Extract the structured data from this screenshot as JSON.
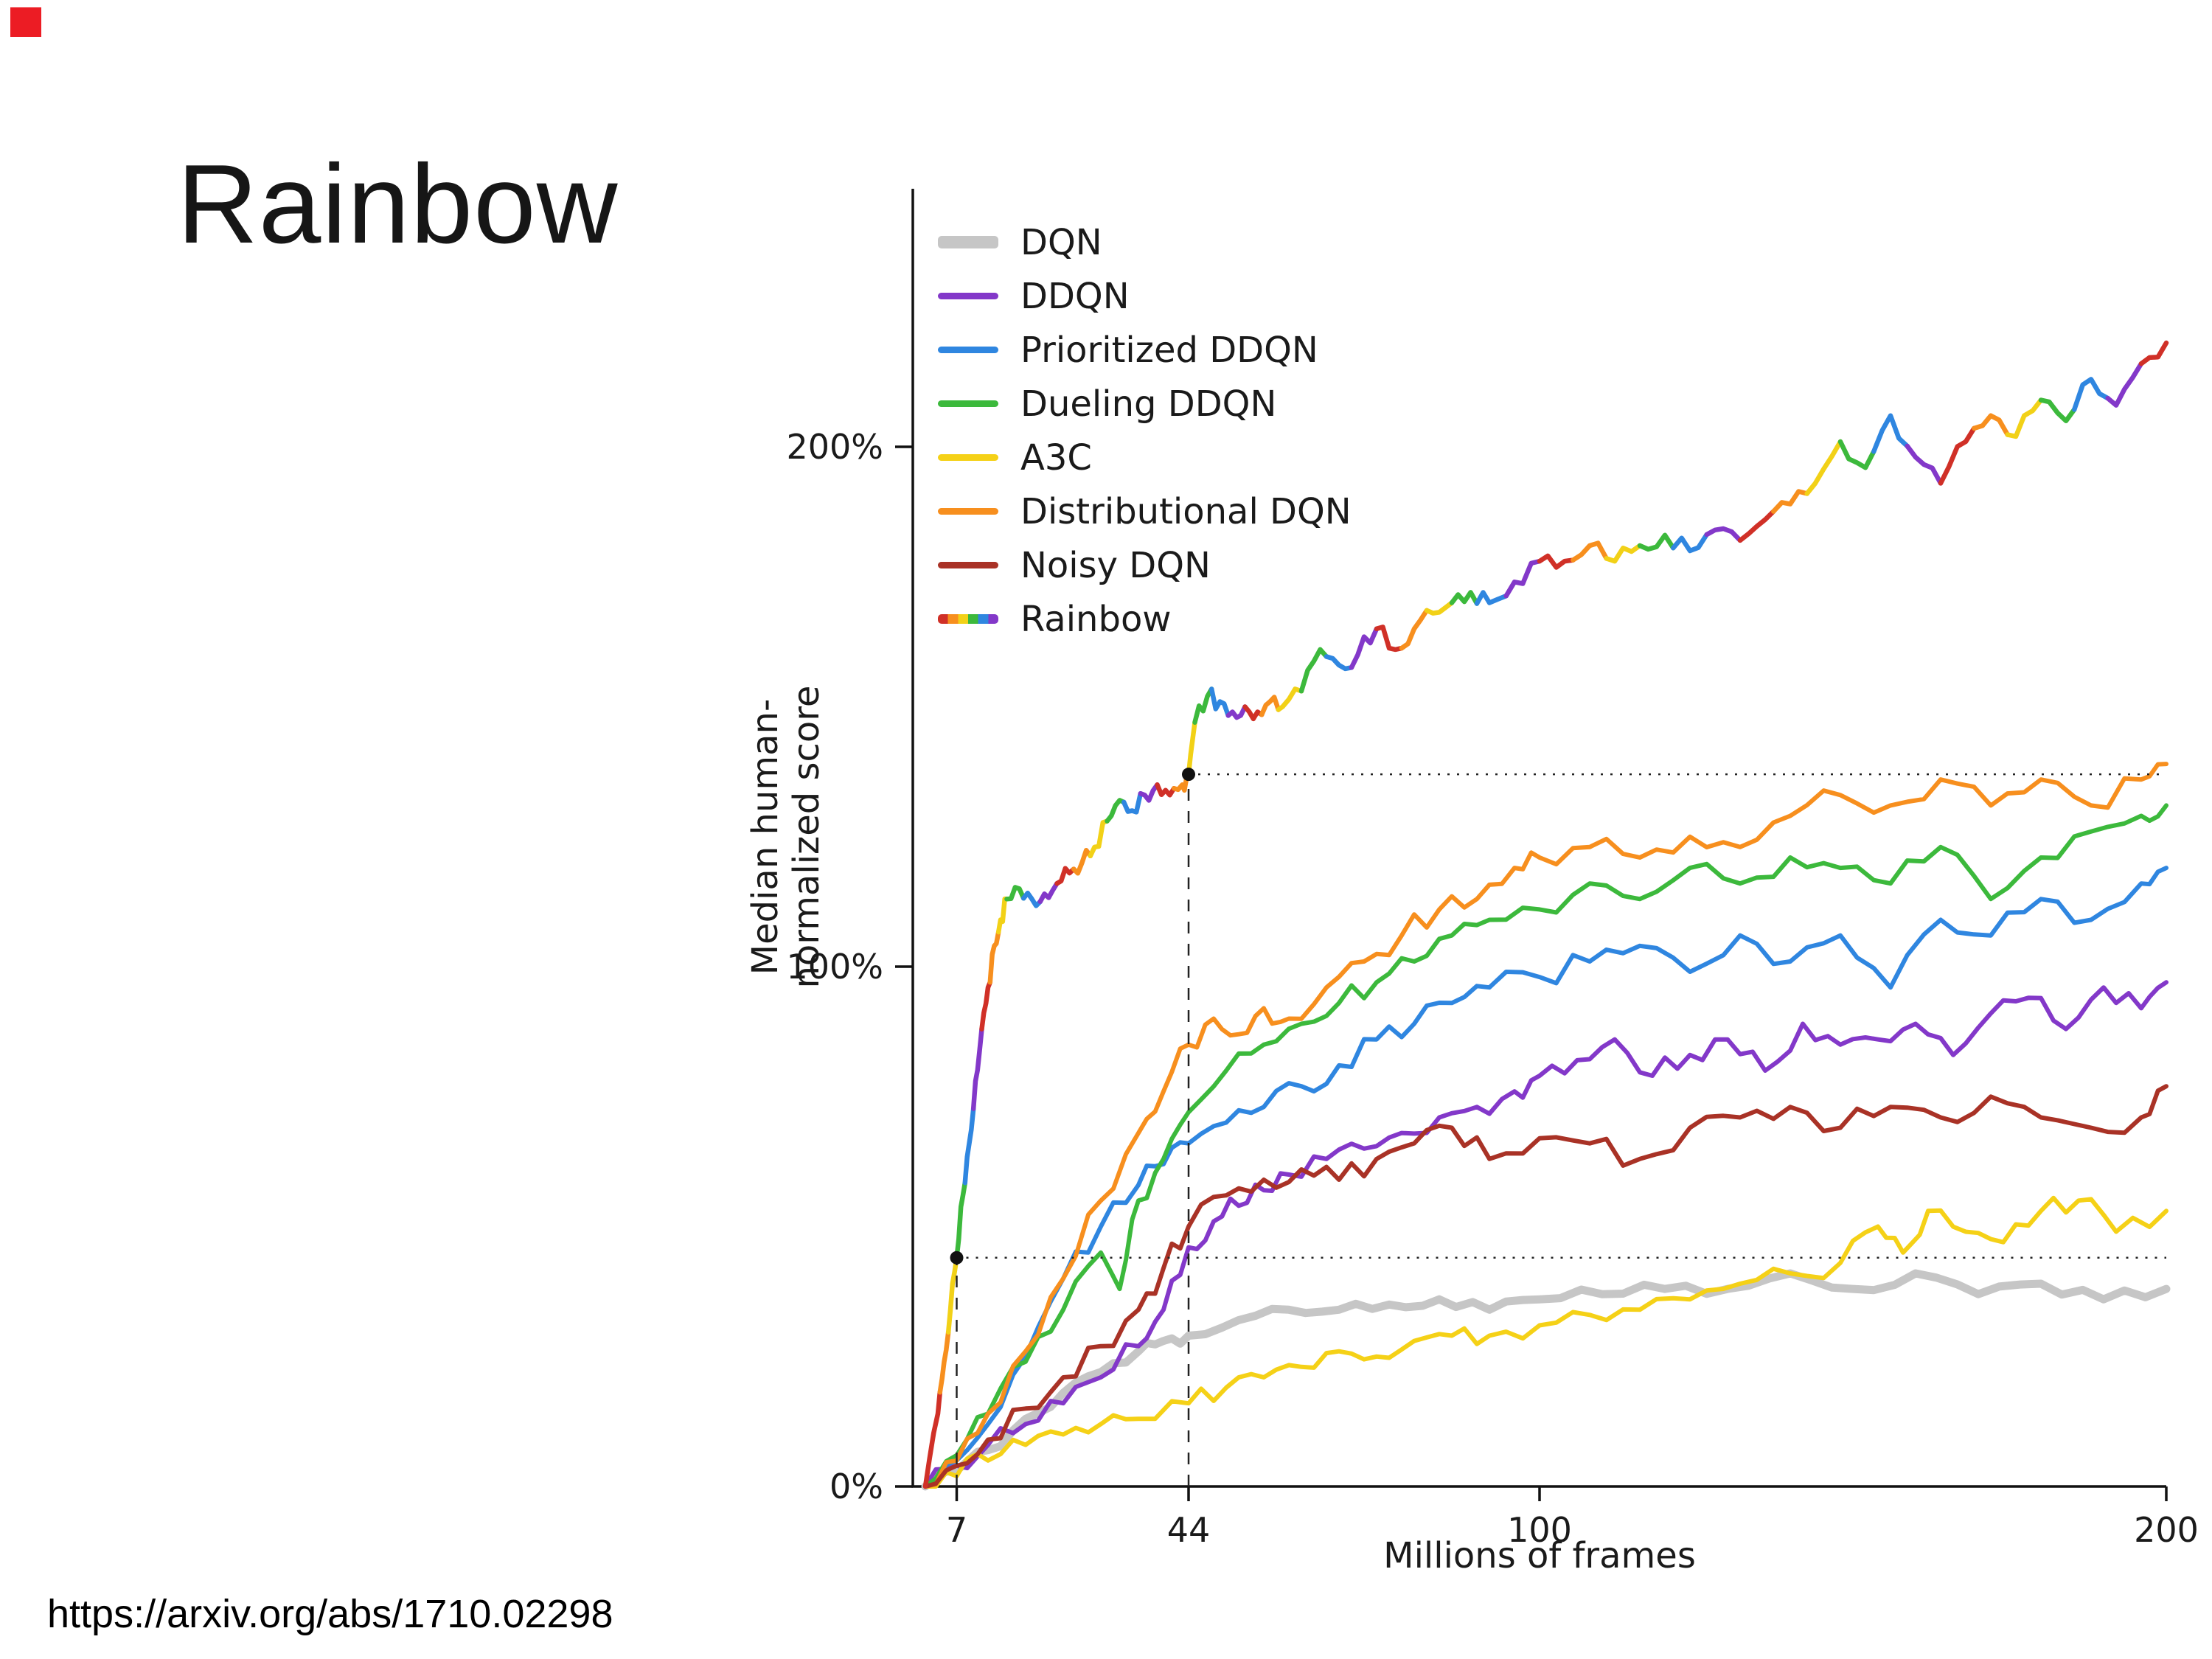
{
  "slide": {
    "title": "Rainbow",
    "source_url": "https://arxiv.org/abs/1710.02298"
  },
  "chart_data": {
    "type": "line",
    "title": "",
    "xlabel": "Millions of frames",
    "ylabel": "Median human-normalized score",
    "xlim": [
      0,
      200
    ],
    "ylim": [
      0,
      248
    ],
    "grid": false,
    "legend_position": "top-left",
    "x_ticks": [
      7,
      44,
      100,
      200
    ],
    "y_ticks": [
      {
        "value": 0,
        "label": "0%"
      },
      {
        "value": 100,
        "label": "100%"
      },
      {
        "value": 200,
        "label": "200%"
      }
    ],
    "series": [
      {
        "name": "DQN",
        "color": "#c6c6c6",
        "width": 11,
        "points": [
          [
            2,
            0
          ],
          [
            7,
            3
          ],
          [
            12,
            7
          ],
          [
            18,
            13
          ],
          [
            24,
            18
          ],
          [
            30,
            22
          ],
          [
            36,
            26
          ],
          [
            40,
            28
          ],
          [
            44,
            29
          ],
          [
            52,
            32
          ],
          [
            60,
            34
          ],
          [
            68,
            34
          ],
          [
            76,
            35
          ],
          [
            84,
            36
          ],
          [
            92,
            34
          ],
          [
            100,
            36
          ],
          [
            110,
            37
          ],
          [
            120,
            38
          ],
          [
            130,
            38
          ],
          [
            140,
            41
          ],
          [
            150,
            38
          ],
          [
            160,
            41
          ],
          [
            170,
            37
          ],
          [
            180,
            39
          ],
          [
            190,
            36
          ],
          [
            200,
            38
          ]
        ]
      },
      {
        "name": "DDQN",
        "color": "#8338c9",
        "width": 6,
        "points": [
          [
            2,
            0
          ],
          [
            7,
            4
          ],
          [
            12,
            8
          ],
          [
            18,
            12
          ],
          [
            24,
            16
          ],
          [
            30,
            21
          ],
          [
            36,
            27
          ],
          [
            40,
            34
          ],
          [
            44,
            46
          ],
          [
            48,
            51
          ],
          [
            52,
            54
          ],
          [
            56,
            57
          ],
          [
            60,
            60
          ],
          [
            66,
            63
          ],
          [
            72,
            65
          ],
          [
            78,
            68
          ],
          [
            84,
            71
          ],
          [
            90,
            73
          ],
          [
            96,
            76
          ],
          [
            100,
            79
          ],
          [
            106,
            82
          ],
          [
            112,
            86
          ],
          [
            118,
            79
          ],
          [
            124,
            83
          ],
          [
            130,
            86
          ],
          [
            136,
            80
          ],
          [
            142,
            89
          ],
          [
            148,
            85
          ],
          [
            154,
            86
          ],
          [
            160,
            89
          ],
          [
            166,
            83
          ],
          [
            172,
            91
          ],
          [
            178,
            94
          ],
          [
            184,
            88
          ],
          [
            190,
            96
          ],
          [
            196,
            92
          ],
          [
            200,
            97
          ]
        ]
      },
      {
        "name": "Prioritized DDQN",
        "color": "#2f86e0",
        "width": 6,
        "points": [
          [
            2,
            0
          ],
          [
            7,
            5
          ],
          [
            12,
            12
          ],
          [
            18,
            25
          ],
          [
            24,
            40
          ],
          [
            30,
            50
          ],
          [
            36,
            58
          ],
          [
            40,
            62
          ],
          [
            44,
            66
          ],
          [
            50,
            70
          ],
          [
            56,
            73
          ],
          [
            62,
            77
          ],
          [
            68,
            81
          ],
          [
            74,
            86
          ],
          [
            80,
            89
          ],
          [
            86,
            93
          ],
          [
            92,
            96
          ],
          [
            100,
            98
          ],
          [
            108,
            101
          ],
          [
            116,
            104
          ],
          [
            124,
            99
          ],
          [
            132,
            106
          ],
          [
            140,
            101
          ],
          [
            148,
            106
          ],
          [
            156,
            96
          ],
          [
            164,
            109
          ],
          [
            172,
            106
          ],
          [
            180,
            113
          ],
          [
            188,
            109
          ],
          [
            196,
            116
          ],
          [
            200,
            119
          ]
        ]
      },
      {
        "name": "Dueling DDQN",
        "color": "#3cb93c",
        "width": 6,
        "points": [
          [
            2,
            0
          ],
          [
            7,
            6
          ],
          [
            12,
            14
          ],
          [
            18,
            24
          ],
          [
            24,
            34
          ],
          [
            30,
            45
          ],
          [
            33,
            38
          ],
          [
            36,
            55
          ],
          [
            40,
            63
          ],
          [
            44,
            72
          ],
          [
            50,
            80
          ],
          [
            56,
            85
          ],
          [
            62,
            89
          ],
          [
            68,
            93
          ],
          [
            74,
            97
          ],
          [
            80,
            101
          ],
          [
            86,
            106
          ],
          [
            92,
            109
          ],
          [
            100,
            111
          ],
          [
            108,
            116
          ],
          [
            116,
            113
          ],
          [
            124,
            119
          ],
          [
            132,
            116
          ],
          [
            140,
            121
          ],
          [
            148,
            119
          ],
          [
            156,
            116
          ],
          [
            164,
            123
          ],
          [
            172,
            113
          ],
          [
            180,
            121
          ],
          [
            188,
            126
          ],
          [
            196,
            129
          ],
          [
            200,
            131
          ]
        ]
      },
      {
        "name": "A3C",
        "color": "#f5d117",
        "width": 6,
        "points": [
          [
            2,
            0
          ],
          [
            7,
            2
          ],
          [
            12,
            5
          ],
          [
            18,
            8
          ],
          [
            24,
            10
          ],
          [
            30,
            12
          ],
          [
            36,
            13
          ],
          [
            44,
            16
          ],
          [
            50,
            19
          ],
          [
            56,
            21
          ],
          [
            62,
            23
          ],
          [
            68,
            26
          ],
          [
            74,
            25
          ],
          [
            80,
            28
          ],
          [
            86,
            29
          ],
          [
            92,
            29
          ],
          [
            100,
            31
          ],
          [
            108,
            33
          ],
          [
            116,
            34
          ],
          [
            124,
            36
          ],
          [
            132,
            39
          ],
          [
            140,
            41
          ],
          [
            148,
            43
          ],
          [
            154,
            50
          ],
          [
            158,
            45
          ],
          [
            162,
            53
          ],
          [
            168,
            49
          ],
          [
            174,
            47
          ],
          [
            180,
            53
          ],
          [
            186,
            55
          ],
          [
            192,
            49
          ],
          [
            200,
            53
          ]
        ]
      },
      {
        "name": "Distributional DQN",
        "color": "#f78f1e",
        "width": 6,
        "points": [
          [
            2,
            0
          ],
          [
            7,
            5
          ],
          [
            12,
            14
          ],
          [
            18,
            26
          ],
          [
            24,
            40
          ],
          [
            30,
            55
          ],
          [
            36,
            68
          ],
          [
            40,
            76
          ],
          [
            44,
            85
          ],
          [
            48,
            90
          ],
          [
            52,
            87
          ],
          [
            56,
            92
          ],
          [
            60,
            90
          ],
          [
            66,
            96
          ],
          [
            72,
            101
          ],
          [
            78,
            106
          ],
          [
            84,
            111
          ],
          [
            90,
            113
          ],
          [
            96,
            119
          ],
          [
            100,
            121
          ],
          [
            108,
            123
          ],
          [
            116,
            121
          ],
          [
            124,
            125
          ],
          [
            132,
            123
          ],
          [
            140,
            129
          ],
          [
            148,
            133
          ],
          [
            156,
            131
          ],
          [
            164,
            136
          ],
          [
            172,
            131
          ],
          [
            180,
            136
          ],
          [
            188,
            131
          ],
          [
            196,
            136
          ],
          [
            200,
            139
          ]
        ]
      },
      {
        "name": "Noisy DQN",
        "color": "#a93226",
        "width": 6,
        "points": [
          [
            2,
            0
          ],
          [
            7,
            4
          ],
          [
            12,
            9
          ],
          [
            18,
            15
          ],
          [
            24,
            21
          ],
          [
            30,
            27
          ],
          [
            36,
            34
          ],
          [
            40,
            42
          ],
          [
            44,
            50
          ],
          [
            50,
            56
          ],
          [
            56,
            59
          ],
          [
            62,
            61
          ],
          [
            68,
            59
          ],
          [
            74,
            63
          ],
          [
            80,
            66
          ],
          [
            86,
            69
          ],
          [
            92,
            63
          ],
          [
            100,
            67
          ],
          [
            108,
            66
          ],
          [
            116,
            63
          ],
          [
            124,
            69
          ],
          [
            132,
            71
          ],
          [
            140,
            73
          ],
          [
            148,
            69
          ],
          [
            156,
            73
          ],
          [
            164,
            71
          ],
          [
            172,
            75
          ],
          [
            180,
            71
          ],
          [
            188,
            69
          ],
          [
            196,
            71
          ],
          [
            200,
            77
          ]
        ]
      },
      {
        "name": "Rainbow",
        "color": [
          "#d03027",
          "#f78f1e",
          "#f2d117",
          "#3cb93c",
          "#2f86e0",
          "#8338c9"
        ],
        "width": 6.5,
        "points": [
          [
            2,
            0
          ],
          [
            4,
            14
          ],
          [
            5,
            24
          ],
          [
            6,
            34
          ],
          [
            7,
            44
          ],
          [
            8,
            56
          ],
          [
            9,
            66
          ],
          [
            10,
            78
          ],
          [
            11,
            88
          ],
          [
            12,
            96
          ],
          [
            13,
            104
          ],
          [
            14,
            109
          ],
          [
            15,
            113
          ],
          [
            17,
            115
          ],
          [
            19,
            113
          ],
          [
            21,
            114
          ],
          [
            23,
            116
          ],
          [
            25,
            118
          ],
          [
            27,
            120
          ],
          [
            29,
            123
          ],
          [
            31,
            128
          ],
          [
            33,
            132
          ],
          [
            35,
            130
          ],
          [
            37,
            133
          ],
          [
            39,
            135
          ],
          [
            41,
            133
          ],
          [
            43,
            135
          ],
          [
            44,
            137
          ],
          [
            45,
            147
          ],
          [
            47,
            152
          ],
          [
            49,
            151
          ],
          [
            51,
            149
          ],
          [
            53,
            150
          ],
          [
            55,
            149
          ],
          [
            57,
            151
          ],
          [
            59,
            150
          ],
          [
            62,
            153
          ],
          [
            65,
            161
          ],
          [
            68,
            158
          ],
          [
            71,
            160
          ],
          [
            74,
            165
          ],
          [
            77,
            161
          ],
          [
            80,
            165
          ],
          [
            83,
            168
          ],
          [
            86,
            170
          ],
          [
            89,
            172
          ],
          [
            92,
            170
          ],
          [
            96,
            174
          ],
          [
            100,
            178
          ],
          [
            104,
            178
          ],
          [
            108,
            181
          ],
          [
            112,
            178
          ],
          [
            116,
            181
          ],
          [
            120,
            183
          ],
          [
            124,
            180
          ],
          [
            128,
            184
          ],
          [
            132,
            182
          ],
          [
            136,
            186
          ],
          [
            140,
            189
          ],
          [
            144,
            193
          ],
          [
            148,
            201
          ],
          [
            152,
            196
          ],
          [
            156,
            206
          ],
          [
            160,
            198
          ],
          [
            164,
            193
          ],
          [
            168,
            201
          ],
          [
            172,
            206
          ],
          [
            176,
            202
          ],
          [
            180,
            209
          ],
          [
            184,
            205
          ],
          [
            188,
            213
          ],
          [
            192,
            208
          ],
          [
            196,
            216
          ],
          [
            200,
            220
          ]
        ]
      }
    ],
    "annotations": {
      "dotted_horizontal": [
        {
          "y": 44,
          "x0": 7,
          "x1": 200
        },
        {
          "y": 137,
          "x0": 44,
          "x1": 200
        }
      ],
      "dashed_vertical": [
        {
          "x": 7,
          "y0": 0,
          "y1": 44
        },
        {
          "x": 44,
          "y0": 0,
          "y1": 137
        }
      ],
      "dots": [
        [
          7,
          44
        ],
        [
          44,
          137
        ]
      ]
    }
  }
}
